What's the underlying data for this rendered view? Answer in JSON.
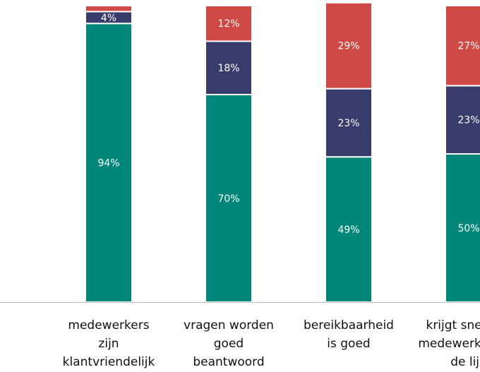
{
  "chart_data": {
    "type": "stacked_bar",
    "categories": [
      [
        "medewerkers",
        "zijn",
        "klantvriendelijk"
      ],
      [
        "vragen worden",
        "goed",
        "beantwoord"
      ],
      [
        "bereikbaarheid",
        "is goed"
      ],
      [
        "krijgt snel een",
        "medewerker aan",
        "de lijn"
      ]
    ],
    "series": [
      {
        "color": "#00877a",
        "values": [
          94,
          70,
          49,
          50
        ],
        "value_labels": [
          "94%",
          "70%",
          "49%",
          "50%"
        ]
      },
      {
        "color": "#373c6b",
        "values": [
          4,
          18,
          23,
          23
        ],
        "value_labels": [
          "4%",
          "18%",
          "23%",
          "23%"
        ]
      },
      {
        "color": "#cf4a44",
        "values": [
          2,
          12,
          29,
          27
        ],
        "value_labels": [
          null,
          "12%",
          "29%",
          "27%"
        ]
      }
    ],
    "ylim": [
      0,
      100
    ]
  }
}
